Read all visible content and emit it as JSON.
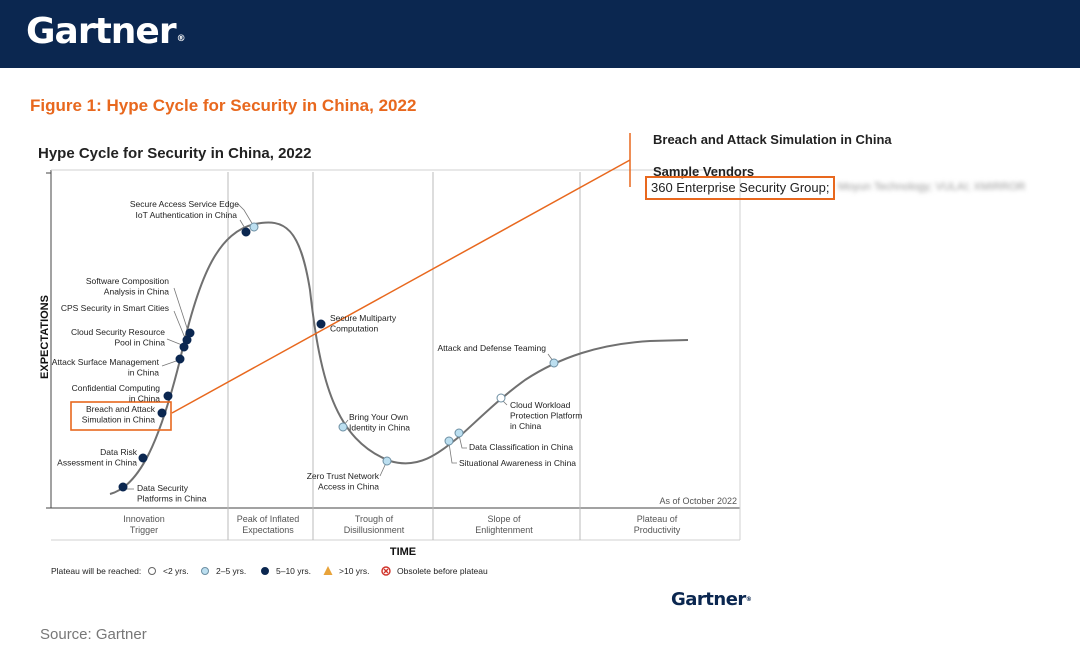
{
  "header": {
    "logo_text": "Gartner"
  },
  "figure_title": "Figure 1: Hype Cycle for Security in China, 2022",
  "callout": {
    "title": "Breach and Attack Simulation in China",
    "subtitle": "Sample Vendors",
    "vendor_highlighted": "360 Enterprise Security Group;",
    "vendor_rest": "Moyun Technology; VULAI; XMIRROR"
  },
  "source": "Source: Gartner",
  "footer_logo": "Gartner",
  "colors": {
    "banner": "#0b2750",
    "accent": "#e8681e",
    "dark_dot": "#0b2750",
    "light_dot": "#bcdff0",
    "curve": "#707070"
  },
  "chart_data": {
    "type": "hype_cycle",
    "title": "Hype Cycle for Security in China, 2022",
    "xlabel": "TIME",
    "ylabel": "EXPECTATIONS",
    "as_of": "As of October 2022",
    "phases": [
      {
        "line1": "Innovation",
        "line2": "Trigger"
      },
      {
        "line1": "Peak of Inflated",
        "line2": "Expectations"
      },
      {
        "line1": "Trough of",
        "line2": "Disillusionment"
      },
      {
        "line1": "Slope of",
        "line2": "Enlightenment"
      },
      {
        "line1": "Plateau of",
        "line2": "Productivity"
      }
    ],
    "legend": {
      "label": "Plateau will be reached:",
      "items": [
        {
          "symbol": "white-circle-icon",
          "text": "<2 yrs."
        },
        {
          "symbol": "light-blue-circle-icon",
          "text": "2–5 yrs."
        },
        {
          "symbol": "dark-blue-circle-icon",
          "text": "5–10 yrs."
        },
        {
          "symbol": "orange-triangle-icon",
          "text": ">10 yrs."
        },
        {
          "symbol": "red-x-circle-icon",
          "text": "Obsolete before plateau"
        }
      ]
    },
    "technologies": [
      {
        "lines": [
          "Secure Access Service Edge"
        ],
        "category": "2-5 yrs"
      },
      {
        "lines": [
          "IoT Authentication in China"
        ],
        "category": "5-10 yrs"
      },
      {
        "lines": [
          "Software Composition",
          "Analysis in China"
        ],
        "category": "5-10 yrs"
      },
      {
        "lines": [
          "CPS Security in Smart Cities"
        ],
        "category": "5-10 yrs"
      },
      {
        "lines": [
          "Cloud Security Resource",
          "Pool in China"
        ],
        "category": "5-10 yrs"
      },
      {
        "lines": [
          "Attack Surface Management",
          "in China"
        ],
        "category": "5-10 yrs"
      },
      {
        "lines": [
          "Confidential Computing",
          "in China"
        ],
        "category": "5-10 yrs"
      },
      {
        "lines": [
          "Breach and Attack",
          "Simulation in China"
        ],
        "category": "5-10 yrs"
      },
      {
        "lines": [
          "Data Risk",
          "Assessment in China"
        ],
        "category": "5-10 yrs"
      },
      {
        "lines": [
          "Data Security",
          "Platforms in China"
        ],
        "category": "5-10 yrs"
      },
      {
        "lines": [
          "Secure Multiparty",
          "Computation"
        ],
        "category": "5-10 yrs"
      },
      {
        "lines": [
          "Bring Your Own",
          "Identity in China"
        ],
        "category": "2-5 yrs"
      },
      {
        "lines": [
          "Zero Trust Network",
          "Access in China"
        ],
        "category": "2-5 yrs"
      },
      {
        "lines": [
          "Situational Awareness in China"
        ],
        "category": "2-5 yrs"
      },
      {
        "lines": [
          "Data Classification in China"
        ],
        "category": "2-5 yrs"
      },
      {
        "lines": [
          "Cloud Workload",
          "Protection Platform",
          "in China"
        ],
        "category": "<2 yrs"
      },
      {
        "lines": [
          "Attack and Defense Teaming"
        ],
        "category": "2-5 yrs"
      }
    ]
  }
}
